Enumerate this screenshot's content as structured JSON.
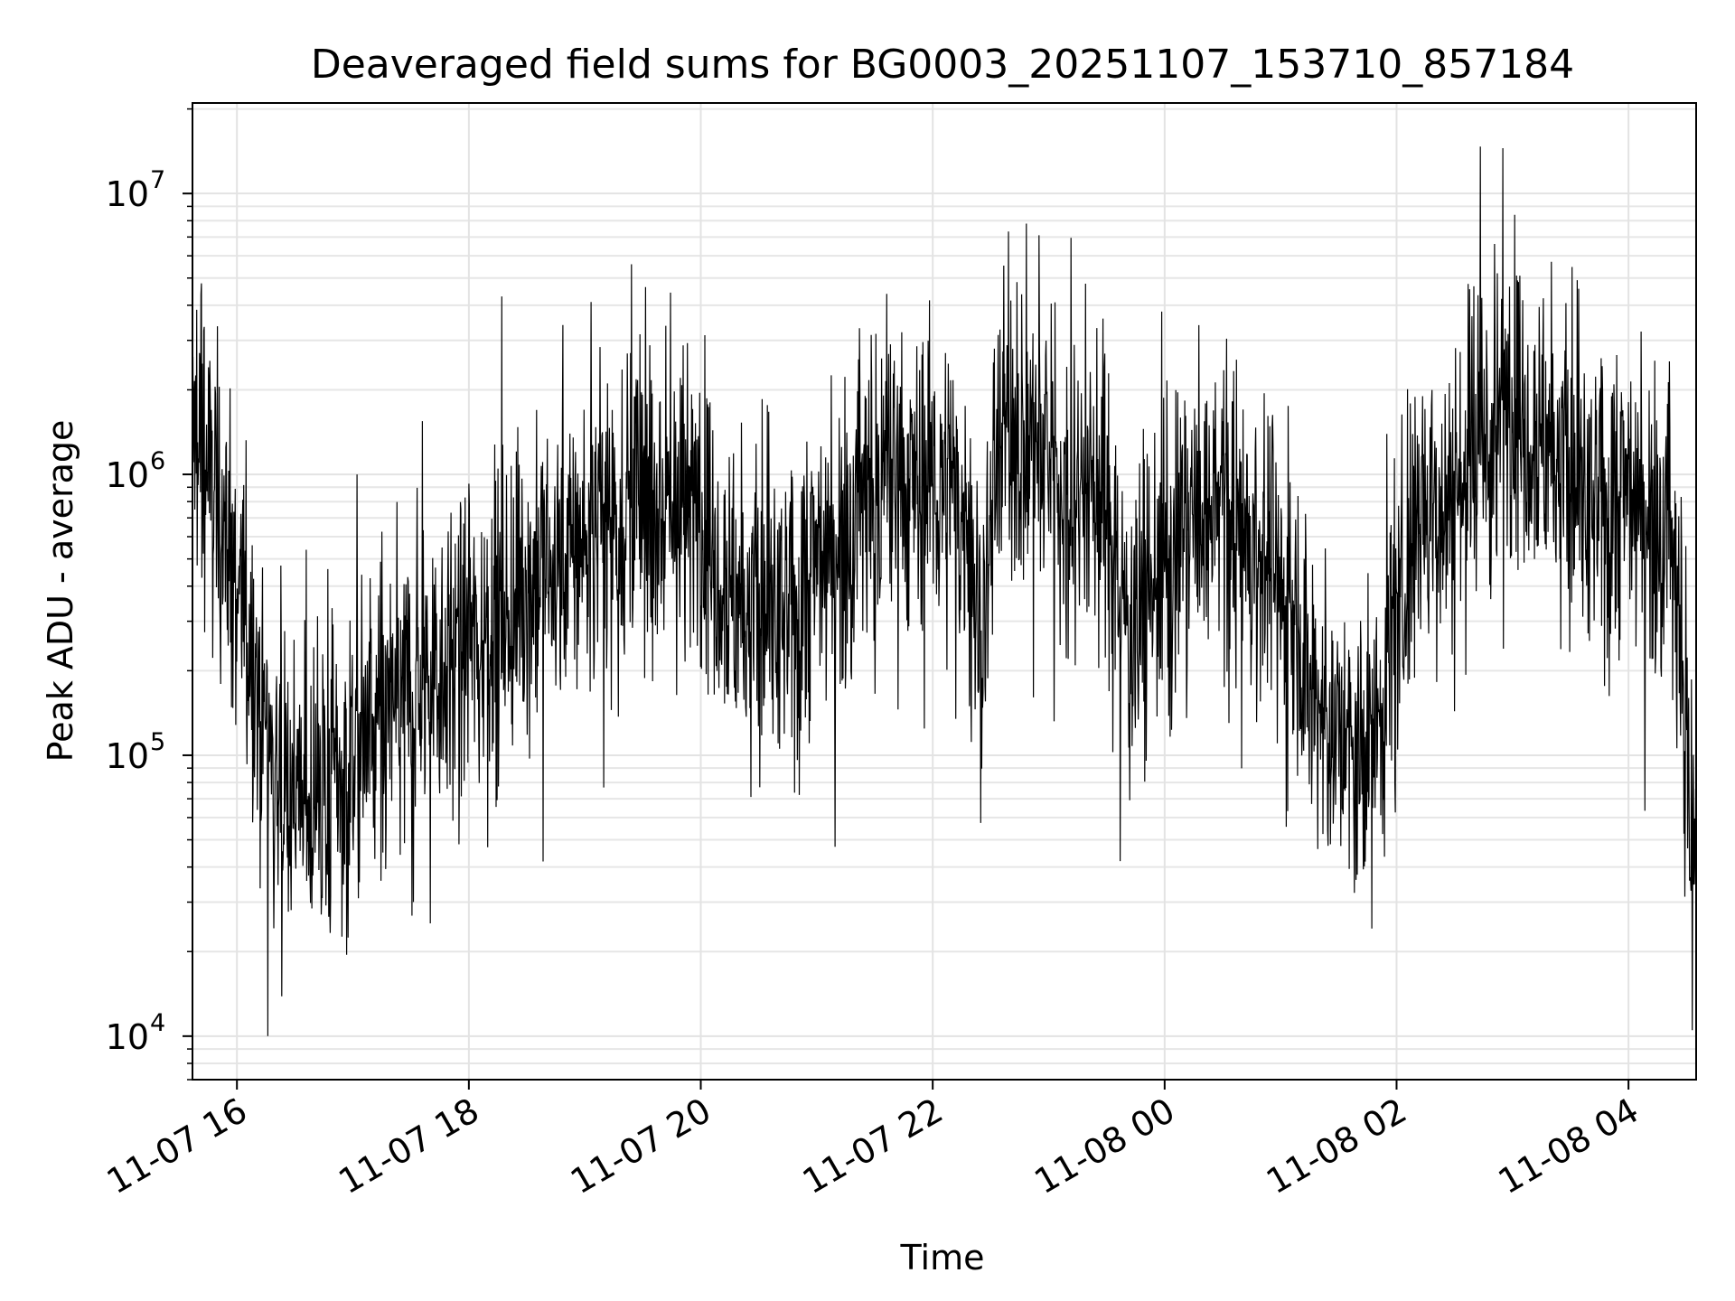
{
  "chart_data": {
    "type": "line",
    "title": "Deaveraged field sums for BG0003_20251107_153710_857184",
    "xlabel": "Time",
    "ylabel": "Peak ADU - average",
    "yscale": "log",
    "grid": true,
    "xlim": [
      "2025-11-07 15:37",
      "2025-11-08 04:35"
    ],
    "ylim": [
      7000,
      21000000
    ],
    "x_ticks": [
      {
        "value": "2025-11-07 16:00",
        "label": "11-07 16"
      },
      {
        "value": "2025-11-07 18:00",
        "label": "11-07 18"
      },
      {
        "value": "2025-11-07 20:00",
        "label": "11-07 20"
      },
      {
        "value": "2025-11-07 22:00",
        "label": "11-07 22"
      },
      {
        "value": "2025-11-08 00:00",
        "label": "11-08 00"
      },
      {
        "value": "2025-11-08 02:00",
        "label": "11-08 02"
      },
      {
        "value": "2025-11-08 04:00",
        "label": "11-08 04"
      }
    ],
    "y_ticks": [
      {
        "value": 10000,
        "base": "10",
        "exp": "4"
      },
      {
        "value": 100000,
        "base": "10",
        "exp": "5"
      },
      {
        "value": 1000000,
        "base": "10",
        "exp": "6"
      },
      {
        "value": 10000000,
        "base": "10",
        "exp": "7"
      }
    ],
    "series": [
      {
        "color": "#000000",
        "trend": {
          "x": [
            "2025-11-07 15:37",
            "2025-11-07 15:50",
            "2025-11-07 16:05",
            "2025-11-07 16:20",
            "2025-11-07 16:40",
            "2025-11-07 17:00",
            "2025-11-07 17:30",
            "2025-11-07 18:00",
            "2025-11-07 18:30",
            "2025-11-07 19:00",
            "2025-11-07 19:30",
            "2025-11-07 20:00",
            "2025-11-07 20:20",
            "2025-11-07 20:45",
            "2025-11-07 21:00",
            "2025-11-07 21:30",
            "2025-11-07 22:00",
            "2025-11-07 22:20",
            "2025-11-07 22:25",
            "2025-11-07 22:35",
            "2025-11-07 23:00",
            "2025-11-07 23:30",
            "2025-11-07 23:40",
            "2025-11-08 00:00",
            "2025-11-08 00:30",
            "2025-11-08 01:00",
            "2025-11-08 01:20",
            "2025-11-08 01:35",
            "2025-11-08 01:45",
            "2025-11-08 02:10",
            "2025-11-08 02:45",
            "2025-11-08 03:00",
            "2025-11-08 03:20",
            "2025-11-08 03:40",
            "2025-11-08 04:00",
            "2025-11-08 04:20",
            "2025-11-08 04:30",
            "2025-11-08 04:35"
          ],
          "y": [
            1400000,
            800000,
            300000,
            90000,
            60000,
            100000,
            180000,
            260000,
            380000,
            600000,
            900000,
            750000,
            350000,
            280000,
            500000,
            900000,
            1000000,
            600000,
            250000,
            1600000,
            1100000,
            800000,
            300000,
            450000,
            800000,
            400000,
            150000,
            100000,
            90000,
            700000,
            1100000,
            1900000,
            1300000,
            700000,
            900000,
            700000,
            150000,
            30000
          ]
        },
        "notable_points": [
          {
            "x": "2025-11-07 16:16",
            "y": 10000
          },
          {
            "x": "2025-11-07 23:37",
            "y": 42000
          },
          {
            "x": "2025-11-08 01:39",
            "y": 36000
          },
          {
            "x": "2025-11-08 02:55",
            "y": 14500000
          },
          {
            "x": "2025-11-08 04:33",
            "y": 10500
          }
        ]
      }
    ]
  }
}
